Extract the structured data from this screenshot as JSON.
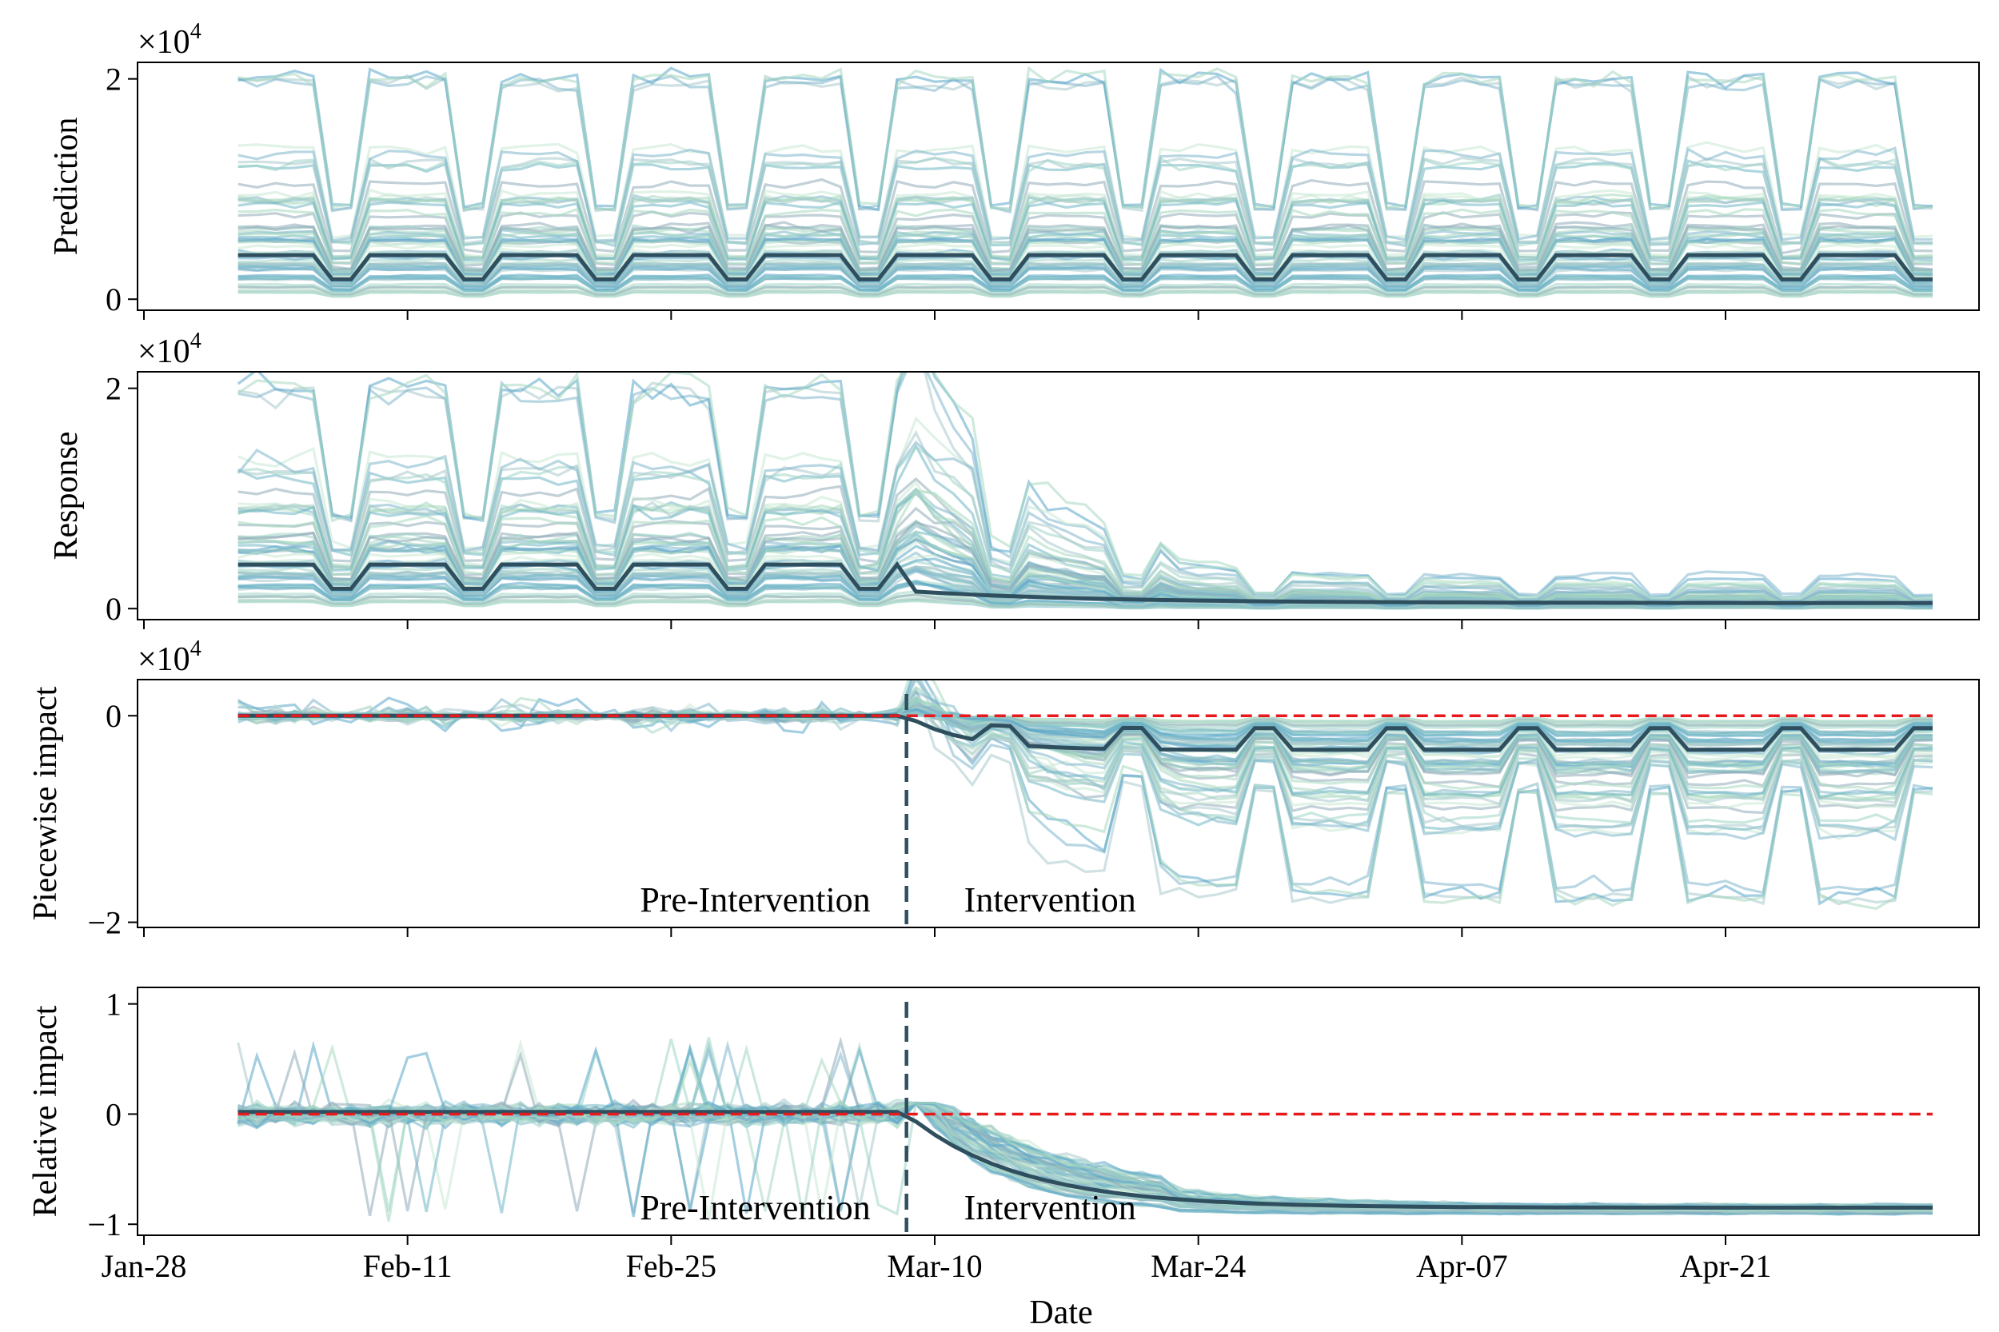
{
  "figure": {
    "xlabel": "Date",
    "x_ticks": [
      "Jan-28",
      "Feb-11",
      "Feb-25",
      "Mar-10",
      "Mar-24",
      "Apr-07",
      "Apr-21"
    ],
    "intervention_day": 40.5,
    "colors": {
      "mean": "#2f4f5f",
      "zero_line": "#e8191c",
      "divider": "#2f4f5f",
      "series": [
        "#a8c8cc",
        "#7fb6cc",
        "#5aa6c8",
        "#a7d9c0",
        "#c8e8d4",
        "#8fa9b8",
        "#6fb7c4",
        "#9fd6c6"
      ]
    }
  },
  "chart_data": [
    {
      "type": "line",
      "name": "prediction",
      "ylabel": "Prediction",
      "multiplier": "×10",
      "multiplier_exp": "4",
      "y_ticks": [
        "0",
        "2"
      ],
      "y_tick_values": [
        0,
        20000
      ],
      "ylim": [
        -1000,
        21500
      ],
      "x_range": [
        "Feb-02",
        "May-02"
      ],
      "mean_weekday": 4000,
      "mean_weekend": 1800,
      "upper_envelope_weekday": 20000,
      "upper_envelope_weekend": 6000,
      "n_series": 60
    },
    {
      "type": "line",
      "name": "response",
      "ylabel": "Response",
      "multiplier": "×10",
      "multiplier_exp": "4",
      "y_ticks": [
        "0",
        "2"
      ],
      "y_tick_values": [
        0,
        20000
      ],
      "ylim": [
        -1000,
        21500
      ],
      "x_range": [
        "Feb-02",
        "May-02"
      ],
      "mean_pre_weekday": 4000,
      "mean_pre_weekend": 1800,
      "mean_end": 500,
      "n_series": 60
    },
    {
      "type": "line",
      "name": "piecewise_impact",
      "ylabel": "Piecewise impact",
      "multiplier": "×10",
      "multiplier_exp": "4",
      "y_ticks": [
        "0",
        "−2"
      ],
      "y_tick_values": [
        0,
        -20000
      ],
      "ylim": [
        -20500,
        3500
      ],
      "x_range": [
        "Feb-02",
        "May-02"
      ],
      "zero_line": 0,
      "annotations": [
        "Pre-Intervention",
        "Intervention"
      ],
      "mean_post_weekday": -3300,
      "mean_post_weekend": -1200,
      "lower_envelope": -19000,
      "n_series": 60
    },
    {
      "type": "line",
      "name": "relative_impact",
      "ylabel": "Relative impact",
      "y_ticks": [
        "1",
        "0",
        "−1"
      ],
      "y_tick_values": [
        1,
        0,
        -1
      ],
      "ylim": [
        -1.1,
        1.15
      ],
      "x_range": [
        "Feb-02",
        "May-02"
      ],
      "zero_line": 0,
      "annotations": [
        "Pre-Intervention",
        "Intervention"
      ],
      "mean_end": -0.85,
      "n_series": 60
    }
  ]
}
